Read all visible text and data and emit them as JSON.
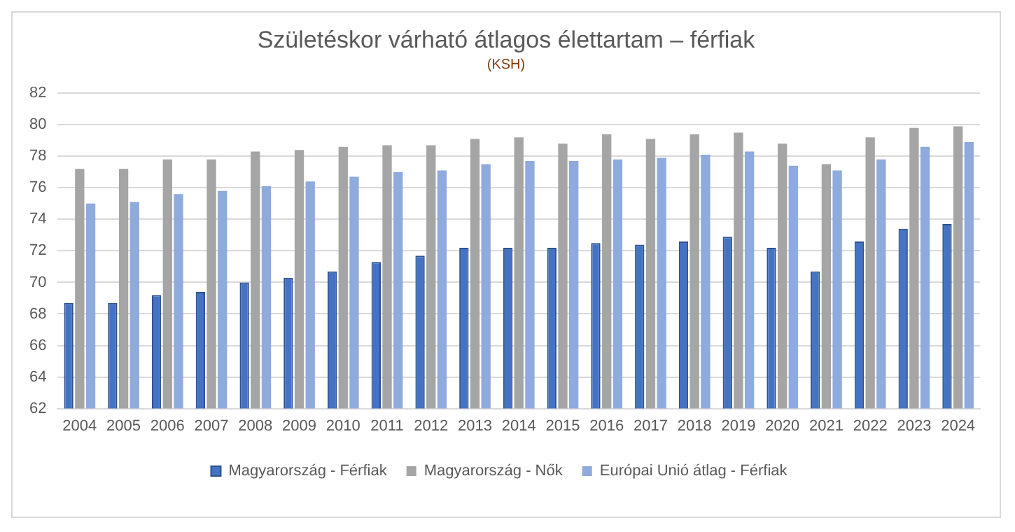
{
  "chart_data": {
    "type": "bar",
    "title": "Születéskor várható átlagos élettartam – férfiak",
    "subtitle": "(KSH)",
    "categories": [
      "2004",
      "2005",
      "2006",
      "2007",
      "2008",
      "2009",
      "2010",
      "2011",
      "2012",
      "2013",
      "2014",
      "2015",
      "2016",
      "2017",
      "2018",
      "2019",
      "2020",
      "2021",
      "2022",
      "2023",
      "2024"
    ],
    "series": [
      {
        "name": "Magyarország - Férfiak",
        "color": "#4472c4",
        "values": [
          68.7,
          68.7,
          69.2,
          69.4,
          70.0,
          70.3,
          70.7,
          71.3,
          71.7,
          72.2,
          72.2,
          72.2,
          72.5,
          72.4,
          72.6,
          72.9,
          72.2,
          70.7,
          72.6,
          73.4,
          73.7
        ]
      },
      {
        "name": "Magyarország - Nők",
        "color": "#a5a5a5",
        "values": [
          77.2,
          77.2,
          77.8,
          77.8,
          78.3,
          78.4,
          78.6,
          78.7,
          78.7,
          79.1,
          79.2,
          78.8,
          79.4,
          79.1,
          79.4,
          79.5,
          78.8,
          77.5,
          79.2,
          79.8,
          79.9
        ]
      },
      {
        "name": "Európai Unió átlag - Férfiak",
        "color": "#8faadc",
        "values": [
          75.0,
          75.1,
          75.6,
          75.8,
          76.1,
          76.4,
          76.7,
          77.0,
          77.1,
          77.5,
          77.7,
          77.7,
          77.8,
          77.9,
          78.1,
          78.3,
          77.4,
          77.1,
          77.8,
          78.6,
          78.9
        ]
      }
    ],
    "ylim": [
      62,
      82
    ],
    "yticks": [
      62,
      64,
      66,
      68,
      70,
      72,
      74,
      76,
      78,
      80,
      82
    ],
    "grid": "y",
    "legend": "bottom"
  }
}
